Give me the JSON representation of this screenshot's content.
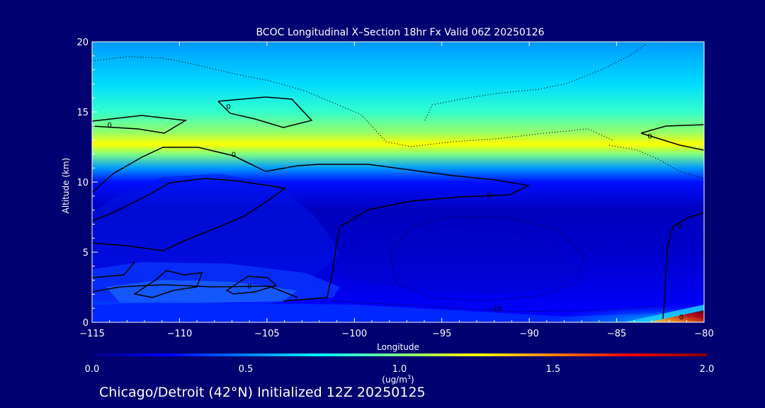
{
  "chart_data": {
    "type": "heatmap",
    "title": "BCOC Longitudinal X–Section 18hr  Fx Valid 06Z 20250126",
    "xlabel": "Longitude",
    "ylabel": "Altitude (km)",
    "xlim": [
      -115,
      -80
    ],
    "ylim": [
      0,
      20
    ],
    "x_ticks": [
      "−115",
      "−110",
      "−105",
      "−100",
      "−95",
      "−90",
      "−85",
      "−80"
    ],
    "y_ticks": [
      "0",
      "5",
      "10",
      "15",
      "20"
    ],
    "colorbar": {
      "min": 0.0,
      "max": 2.0,
      "ticks": [
        "0.0",
        "0.5",
        "1.0",
        "1.5",
        "2.0"
      ],
      "unit_line1": "(ug/m",
      "unit_sup": "3",
      "unit_line2": ")",
      "colors": [
        "#000080",
        "#0000ff",
        "#0080ff",
        "#00ffff",
        "#80ff80",
        "#ffff00",
        "#ff8000",
        "#ff0000",
        "#800000"
      ]
    },
    "altitude_profile": [
      {
        "altitude": 0.5,
        "value": 0.25
      },
      {
        "altitude": 2.5,
        "value": 0.2
      },
      {
        "altitude": 5,
        "value": 0.15
      },
      {
        "altitude": 8,
        "value": 0.12
      },
      {
        "altitude": 10,
        "value": 0.28
      },
      {
        "altitude": 11,
        "value": 0.55
      },
      {
        "altitude": 12,
        "value": 1.0
      },
      {
        "altitude": 12.7,
        "value": 1.25
      },
      {
        "altitude": 13.5,
        "value": 1.05
      },
      {
        "altitude": 15,
        "value": 0.85
      },
      {
        "altitude": 17,
        "value": 0.68
      },
      {
        "altitude": 20,
        "value": 0.55
      }
    ],
    "contour_labels": [
      {
        "lon": -114.0,
        "alt": 14.1,
        "text": "0"
      },
      {
        "lon": -107.2,
        "alt": 15.4,
        "text": "0"
      },
      {
        "lon": -106.9,
        "alt": 12.0,
        "text": "0"
      },
      {
        "lon": -83.1,
        "alt": 13.3,
        "text": "0"
      },
      {
        "lon": -92.3,
        "alt": 9.1,
        "text": "0"
      },
      {
        "lon": -81.4,
        "alt": 6.9,
        "text": "0"
      },
      {
        "lon": -81.3,
        "alt": 0.4,
        "text": "0"
      },
      {
        "lon": -106.0,
        "alt": 2.6,
        "text": "0"
      },
      {
        "lon": -92.0,
        "alt": 1.0,
        "text": "−10"
      }
    ]
  },
  "footer": {
    "text": "Chicago/Detroit (42°N) Initialized 12Z 20250125"
  }
}
